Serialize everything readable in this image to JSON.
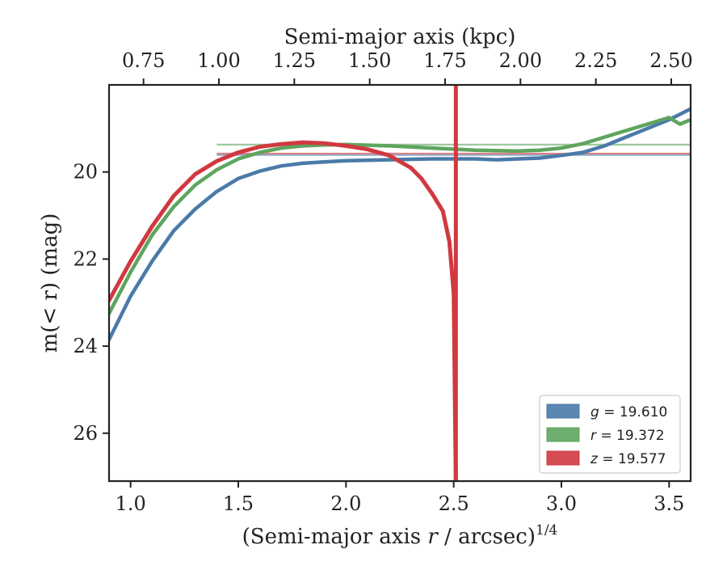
{
  "chart_data": {
    "type": "line",
    "xlabel_prefix": "(Semi-major axis ",
    "xlabel_var": "r",
    "xlabel_suffix": " / arcsec)",
    "xlabel_exp": "1/4",
    "top_xlabel": "Semi-major axis (kpc)",
    "ylabel": "m(< r) (mag)",
    "xlim": [
      0.9,
      3.6
    ],
    "ylim": [
      27.1,
      18.0
    ],
    "y_inverted": true,
    "x_ticks": [
      1.0,
      1.5,
      2.0,
      2.5,
      3.0,
      3.5
    ],
    "x_tick_labels": [
      "1.0",
      "1.5",
      "2.0",
      "2.5",
      "3.0",
      "3.5"
    ],
    "y_ticks": [
      20,
      22,
      24,
      26
    ],
    "y_tick_labels": [
      "20",
      "22",
      "24",
      "26"
    ],
    "top_x_ticks": [
      0.75,
      1.0,
      1.25,
      1.5,
      1.75,
      2.0,
      2.25,
      2.5
    ],
    "top_x_tick_labels": [
      "0.75",
      "1.00",
      "1.25",
      "1.50",
      "1.75",
      "2.00",
      "2.25",
      "2.50"
    ],
    "top_x_tick_positions_bottom_units": [
      1.06,
      1.41,
      1.76,
      2.11,
      2.46,
      2.81,
      3.16,
      3.51
    ],
    "grid": false,
    "legend_position": "lower-right",
    "vertical_line_x": 2.51,
    "series": [
      {
        "name": "g = 19.610",
        "legend_var": "g",
        "legend_value": "= 19.610",
        "color": "#4a7aa8",
        "asymptote": 19.61,
        "x": [
          0.9,
          1.0,
          1.1,
          1.2,
          1.3,
          1.4,
          1.5,
          1.6,
          1.7,
          1.8,
          1.9,
          2.0,
          2.2,
          2.4,
          2.6,
          2.7,
          2.8,
          2.9,
          3.0,
          3.1,
          3.2,
          3.3,
          3.4,
          3.5,
          3.6
        ],
        "y": [
          23.85,
          22.85,
          22.05,
          21.35,
          20.85,
          20.45,
          20.15,
          19.98,
          19.86,
          19.8,
          19.77,
          19.74,
          19.72,
          19.7,
          19.7,
          19.72,
          19.7,
          19.68,
          19.62,
          19.55,
          19.4,
          19.2,
          19.0,
          18.8,
          18.55
        ]
      },
      {
        "name": "r = 19.372",
        "legend_var": "r",
        "legend_value": "= 19.372",
        "color": "#5ea55e",
        "asymptote": 19.372,
        "x": [
          0.9,
          1.0,
          1.1,
          1.2,
          1.3,
          1.4,
          1.5,
          1.6,
          1.7,
          1.8,
          1.9,
          2.0,
          2.2,
          2.4,
          2.6,
          2.8,
          2.9,
          3.0,
          3.1,
          3.2,
          3.3,
          3.4,
          3.5,
          3.55,
          3.6
        ],
        "y": [
          23.25,
          22.3,
          21.45,
          20.8,
          20.3,
          19.95,
          19.7,
          19.55,
          19.45,
          19.4,
          19.38,
          19.37,
          19.4,
          19.45,
          19.5,
          19.52,
          19.5,
          19.45,
          19.35,
          19.2,
          19.05,
          18.9,
          18.75,
          18.9,
          18.8
        ]
      },
      {
        "name": "z = 19.577",
        "legend_var": "z",
        "legend_value": "= 19.577",
        "color": "#d0393f",
        "asymptote": 19.577,
        "x": [
          0.9,
          1.0,
          1.1,
          1.2,
          1.3,
          1.4,
          1.5,
          1.6,
          1.7,
          1.8,
          1.9,
          2.0,
          2.1,
          2.2,
          2.3,
          2.35,
          2.4,
          2.45,
          2.48,
          2.5,
          2.51
        ],
        "y": [
          22.95,
          22.05,
          21.25,
          20.55,
          20.05,
          19.75,
          19.55,
          19.42,
          19.36,
          19.32,
          19.34,
          19.4,
          19.48,
          19.62,
          19.9,
          20.15,
          20.5,
          20.9,
          21.6,
          22.8,
          27.1
        ]
      }
    ]
  }
}
